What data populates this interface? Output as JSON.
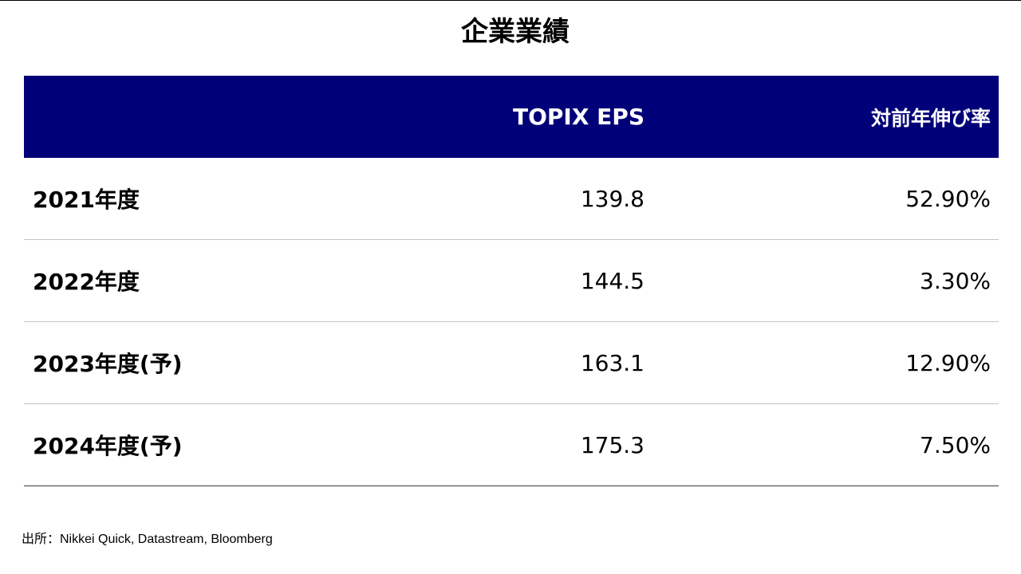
{
  "title": "企業業績",
  "table": {
    "columns": [
      "",
      "TOPIX EPS",
      "対前年伸び率"
    ],
    "rows": [
      {
        "label": "2021年度",
        "eps": "139.8",
        "growth": "52.90%"
      },
      {
        "label": "2022年度",
        "eps": "144.5",
        "growth": "3.30%"
      },
      {
        "label": "2023年度(予)",
        "eps": "163.1",
        "growth": "12.90%"
      },
      {
        "label": "2024年度(予)",
        "eps": "175.3",
        "growth": "7.50%"
      }
    ]
  },
  "source": "出所：Nikkei Quick, Datastream, Bloomberg",
  "colors": {
    "header_background": "#000078",
    "header_text": "#ffffff",
    "row_divider": "#c4c4c4",
    "bottom_rule": "#3a3a3a"
  }
}
